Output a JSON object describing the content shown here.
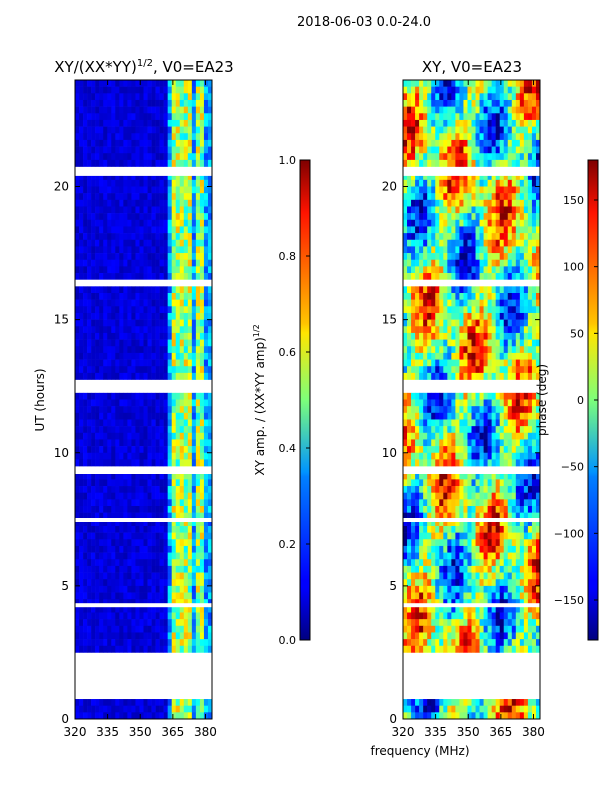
{
  "suptitle": "2018-06-03 0.0-24.0",
  "shared": {
    "xlabel": "frequency (MHz)",
    "ylabel": "UT (hours)",
    "xlim": [
      320,
      383
    ],
    "ylim": [
      0,
      24
    ],
    "xticks": [
      320,
      335,
      350,
      365,
      380
    ],
    "yticks": [
      0,
      5,
      10,
      15,
      20
    ],
    "gap_bands_hours": [
      [
        0.8,
        2.4
      ],
      [
        12.3,
        12.7
      ],
      [
        16.3,
        16.5
      ],
      [
        20.4,
        20.7
      ],
      [
        9.2,
        9.4
      ],
      [
        4.2,
        4.35
      ],
      [
        7.4,
        7.55
      ]
    ]
  },
  "chart_data": [
    {
      "type": "heatmap",
      "title_base": "XY/(XX*YY)",
      "title_exp": "1/2",
      "title_tail": ", V0=EA23",
      "xlabel": "",
      "ylabel": "UT (hours)",
      "colorbar": {
        "label_base": "XY amp. / (XX*YY amp)",
        "label_exp": "1/2",
        "range": [
          0.0,
          1.0
        ],
        "ticks": [
          "0.0",
          "0.2",
          "0.4",
          "0.6",
          "0.8",
          "1.0"
        ],
        "tick_values": [
          0.0,
          0.2,
          0.4,
          0.6,
          0.8,
          1.0
        ]
      },
      "bright_columns_mhz": [
        365,
        368,
        370,
        373,
        377,
        379
      ]
    },
    {
      "type": "heatmap",
      "title": "XY, V0=EA23",
      "xlabel": "frequency (MHz)",
      "ylabel": "",
      "colorbar": {
        "label": "phase (deg)",
        "range": [
          -180,
          180
        ],
        "ticks": [
          "150",
          "100",
          "50",
          "0",
          "−50",
          "−100",
          "−150"
        ],
        "tick_values": [
          150,
          100,
          50,
          0,
          -50,
          -100,
          -150
        ]
      }
    }
  ]
}
